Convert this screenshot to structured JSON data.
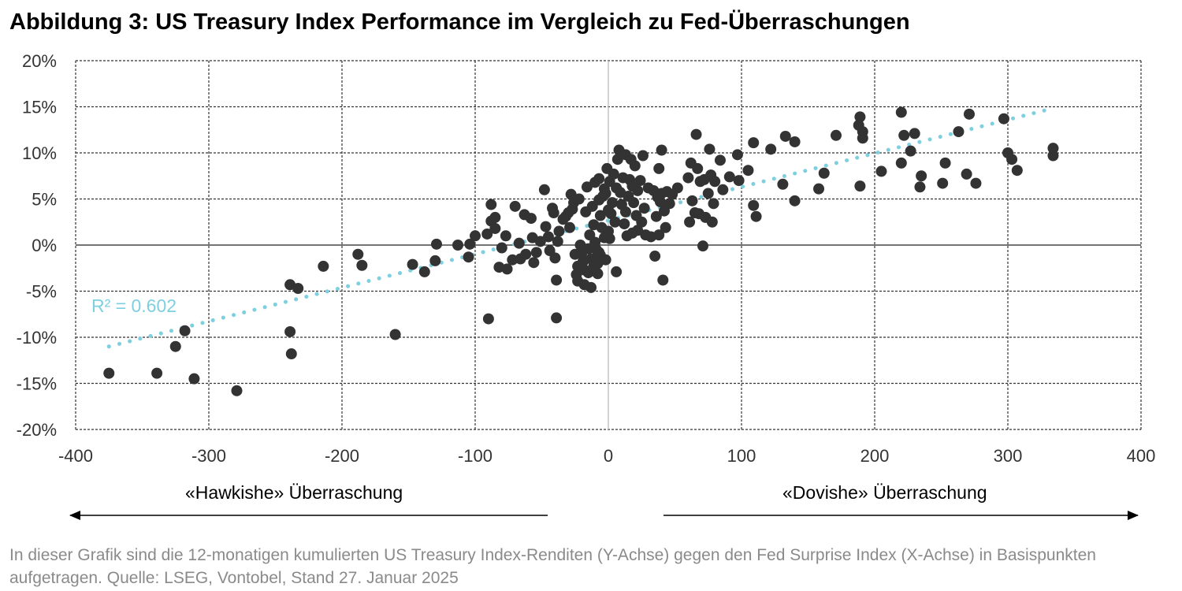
{
  "title": "Abbildung 3: US Treasury Index Performance im Vergleich zu Fed-Überraschungen",
  "annotations": {
    "hawkish_label": "«Hawkishe» Überraschung",
    "dovish_label": "«Dovishe» Überraschung",
    "r_squared": "R² = 0.602"
  },
  "footnote": "In dieser Grafik sind die 12-monatigen kumulierten US Treasury Index-Renditen (Y-Achse) gegen den Fed Surprise Index (X-Achse) in Basispunkten aufgetragen. Quelle: LSEG, Vontobel, Stand 27. Januar 2025",
  "colors": {
    "points": "#333333",
    "trendline": "#7ecfe0",
    "grid": "#333333",
    "zero_x_line": "#bbbbbb"
  },
  "chart_data": {
    "type": "scatter",
    "xlabel": "",
    "ylabel": "",
    "xlim": [
      -400,
      400
    ],
    "ylim": [
      -20,
      20
    ],
    "x_ticks": [
      "-400",
      "-300",
      "-200",
      "-100",
      "0",
      "100",
      "200",
      "300",
      "400"
    ],
    "y_ticks": [
      "20%",
      "15%",
      "10%",
      "5%",
      "0%",
      "-5%",
      "-10%",
      "-15%",
      "-20%"
    ],
    "grid": true,
    "trendline": {
      "type": "linear",
      "from": [
        -375,
        -11.0
      ],
      "to": [
        333,
        14.8
      ],
      "r_squared": 0.602
    },
    "points": [
      [
        -375,
        -13.9
      ],
      [
        -339,
        -13.9
      ],
      [
        -325,
        -11.0
      ],
      [
        -318,
        -9.3
      ],
      [
        -311,
        -14.5
      ],
      [
        -279,
        -15.8
      ],
      [
        -239,
        -4.3
      ],
      [
        -239,
        -9.4
      ],
      [
        -238,
        -11.8
      ],
      [
        -233,
        -4.7
      ],
      [
        -214,
        -2.3
      ],
      [
        -188,
        -1.0
      ],
      [
        -185,
        -2.2
      ],
      [
        -160,
        -9.7
      ],
      [
        -147,
        -2.1
      ],
      [
        -138,
        -2.9
      ],
      [
        -130,
        -1.7
      ],
      [
        -129,
        0.1
      ],
      [
        -113,
        0.0
      ],
      [
        -105,
        -1.3
      ],
      [
        -104,
        0.1
      ],
      [
        -100,
        1.0
      ],
      [
        -91,
        1.2
      ],
      [
        -90,
        -8.0
      ],
      [
        -88,
        4.4
      ],
      [
        -88,
        2.6
      ],
      [
        -85,
        3.0
      ],
      [
        -85,
        1.8
      ],
      [
        -82,
        -2.4
      ],
      [
        -80,
        -0.3
      ],
      [
        -77,
        1.0
      ],
      [
        -76,
        -2.6
      ],
      [
        -72,
        -1.6
      ],
      [
        -70,
        4.2
      ],
      [
        -67,
        0.2
      ],
      [
        -66,
        -1.5
      ],
      [
        -63,
        3.3
      ],
      [
        -62,
        -1.0
      ],
      [
        -58,
        2.9
      ],
      [
        -57,
        0.8
      ],
      [
        -56,
        -1.9
      ],
      [
        -54,
        -0.8
      ],
      [
        -51,
        0.4
      ],
      [
        -48,
        6.0
      ],
      [
        -47,
        2.0
      ],
      [
        -45,
        0.9
      ],
      [
        -44,
        -0.6
      ],
      [
        -42,
        4.0
      ],
      [
        -41,
        3.5
      ],
      [
        -40,
        -1.4
      ],
      [
        -39,
        -3.8
      ],
      [
        -39,
        -7.9
      ],
      [
        -38,
        0.4
      ],
      [
        -37,
        1.5
      ],
      [
        -34,
        2.8
      ],
      [
        -32,
        3.1
      ],
      [
        -30,
        3.5
      ],
      [
        -29,
        1.9
      ],
      [
        -28,
        5.5
      ],
      [
        -27,
        3.9
      ],
      [
        -26,
        4.6
      ],
      [
        -25,
        -1.0
      ],
      [
        -24,
        -3.2
      ],
      [
        -23,
        -2.3
      ],
      [
        -23,
        -3.9
      ],
      [
        -22,
        5.0
      ],
      [
        -21,
        0.0
      ],
      [
        -20,
        -0.9
      ],
      [
        -19,
        -1.8
      ],
      [
        -18,
        -2.7
      ],
      [
        -18,
        -4.3
      ],
      [
        -17,
        3.6
      ],
      [
        -16,
        6.3
      ],
      [
        -15,
        -0.4
      ],
      [
        -15,
        -3.0
      ],
      [
        -14,
        1.1
      ],
      [
        -13,
        -1.5
      ],
      [
        -13,
        -4.6
      ],
      [
        -12,
        4.2
      ],
      [
        -11,
        2.2
      ],
      [
        -11,
        -2.3
      ],
      [
        -10,
        6.8
      ],
      [
        -10,
        0.3
      ],
      [
        -9,
        -0.5
      ],
      [
        -8,
        -3.1
      ],
      [
        -8,
        -2.0
      ],
      [
        -7,
        7.2
      ],
      [
        -7,
        4.9
      ],
      [
        -7,
        -0.8
      ],
      [
        -6,
        3.2
      ],
      [
        -6,
        -1.1
      ],
      [
        -5,
        1.9
      ],
      [
        -4,
        5.3
      ],
      [
        -3,
        6.1
      ],
      [
        -3,
        0.8
      ],
      [
        -2,
        -1.6
      ],
      [
        -2,
        5.6
      ],
      [
        -1,
        8.3
      ],
      [
        0,
        3.8
      ],
      [
        0,
        1.5
      ],
      [
        1,
        6.9
      ],
      [
        1,
        0.7
      ],
      [
        2,
        3.4
      ],
      [
        3,
        4.6
      ],
      [
        4,
        7.7
      ],
      [
        5,
        2.5
      ],
      [
        6,
        6.2
      ],
      [
        6,
        -2.9
      ],
      [
        7,
        9.3
      ],
      [
        8,
        10.3
      ],
      [
        9,
        5.7
      ],
      [
        10,
        4.4
      ],
      [
        11,
        7.3
      ],
      [
        12,
        2.3
      ],
      [
        13,
        9.8
      ],
      [
        13,
        3.6
      ],
      [
        14,
        1.0
      ],
      [
        15,
        5.3
      ],
      [
        16,
        7.1
      ],
      [
        17,
        9.3
      ],
      [
        18,
        6.4
      ],
      [
        18,
        1.3
      ],
      [
        19,
        4.6
      ],
      [
        20,
        8.6
      ],
      [
        21,
        3.2
      ],
      [
        22,
        1.6
      ],
      [
        22,
        5.9
      ],
      [
        24,
        7.0
      ],
      [
        25,
        2.5
      ],
      [
        26,
        9.7
      ],
      [
        27,
        4.0
      ],
      [
        28,
        1.1
      ],
      [
        30,
        6.2
      ],
      [
        32,
        0.9
      ],
      [
        34,
        5.9
      ],
      [
        35,
        -1.2
      ],
      [
        36,
        3.1
      ],
      [
        37,
        5.2
      ],
      [
        38,
        8.3
      ],
      [
        38,
        1.1
      ],
      [
        39,
        4.7
      ],
      [
        40,
        10.3
      ],
      [
        40,
        5.6
      ],
      [
        41,
        -3.8
      ],
      [
        42,
        3.7
      ],
      [
        43,
        1.9
      ],
      [
        44,
        5.8
      ],
      [
        46,
        4.5
      ],
      [
        48,
        5.5
      ],
      [
        52,
        6.2
      ],
      [
        60,
        7.3
      ],
      [
        61,
        2.5
      ],
      [
        62,
        8.9
      ],
      [
        63,
        4.8
      ],
      [
        65,
        3.5
      ],
      [
        66,
        12.0
      ],
      [
        67,
        8.3
      ],
      [
        68,
        3.4
      ],
      [
        69,
        6.9
      ],
      [
        71,
        -0.1
      ],
      [
        72,
        7.1
      ],
      [
        73,
        3.0
      ],
      [
        75,
        5.6
      ],
      [
        76,
        10.4
      ],
      [
        77,
        7.6
      ],
      [
        78,
        2.5
      ],
      [
        79,
        4.5
      ],
      [
        80,
        6.9
      ],
      [
        84,
        9.2
      ],
      [
        86,
        6.0
      ],
      [
        91,
        7.4
      ],
      [
        97,
        9.8
      ],
      [
        98,
        7.0
      ],
      [
        105,
        8.1
      ],
      [
        109,
        11.1
      ],
      [
        109,
        4.3
      ],
      [
        111,
        3.1
      ],
      [
        122,
        10.4
      ],
      [
        131,
        6.6
      ],
      [
        133,
        11.8
      ],
      [
        140,
        11.2
      ],
      [
        140,
        4.8
      ],
      [
        158,
        6.1
      ],
      [
        162,
        7.8
      ],
      [
        171,
        11.9
      ],
      [
        189,
        13.9
      ],
      [
        188,
        13.0
      ],
      [
        189,
        6.4
      ],
      [
        191,
        12.3
      ],
      [
        191,
        11.6
      ],
      [
        205,
        8.0
      ],
      [
        220,
        14.4
      ],
      [
        220,
        8.9
      ],
      [
        222,
        11.9
      ],
      [
        227,
        10.2
      ],
      [
        230,
        12.1
      ],
      [
        234,
        6.3
      ],
      [
        235,
        7.5
      ],
      [
        251,
        6.7
      ],
      [
        253,
        8.9
      ],
      [
        263,
        12.3
      ],
      [
        269,
        7.7
      ],
      [
        271,
        14.2
      ],
      [
        276,
        6.7
      ],
      [
        297,
        13.7
      ],
      [
        300,
        10.0
      ],
      [
        303,
        9.3
      ],
      [
        307,
        8.1
      ],
      [
        334,
        10.5
      ],
      [
        334,
        9.7
      ]
    ]
  }
}
